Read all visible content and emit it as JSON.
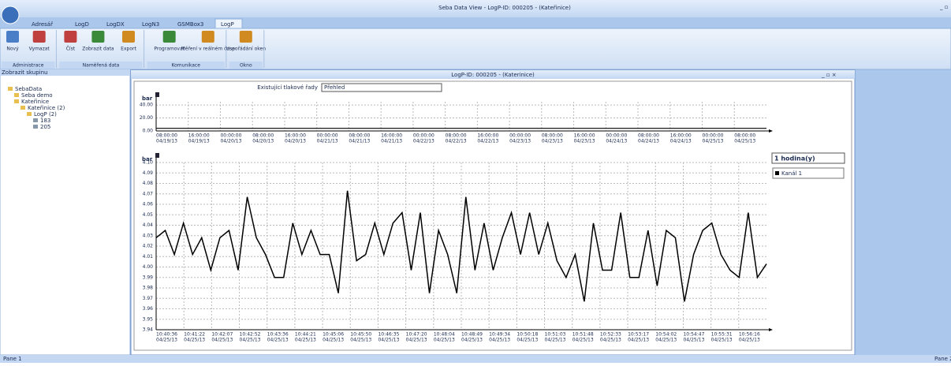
{
  "window_title": "Seba Data View - LogP-ID: 000205 -  (Kateřinice)",
  "tabs": [
    "Adresář",
    "LogD",
    "LogDX",
    "LogN3",
    "GSMBox3",
    "LogP"
  ],
  "ribbon_groups": [
    {
      "label": "Administrace",
      "buttons": [
        "Nový",
        "Vymazat"
      ]
    },
    {
      "label": "Naměřená data",
      "buttons": [
        "Číst",
        "Zobrazit data",
        "Export"
      ]
    },
    {
      "label": "Komunikace",
      "buttons": [
        "Programovat",
        "Měření v reálném čase"
      ]
    },
    {
      "label": "Okno",
      "buttons": [
        "Uspořádání oken"
      ]
    }
  ],
  "side_panel": {
    "title": "Zobrazit skupinu",
    "tree": [
      "SebaData",
      "Seba demo",
      "Kateřinice",
      "Kateřinice (2)",
      "LogP (2)",
      "183",
      "205"
    ]
  },
  "child_window": {
    "title": "LogP-ID: 000205 -  (Katerinice)",
    "series_label": "Existující tlakové řady",
    "series_select": "Přehled",
    "range_select": "1 hodina(y)"
  },
  "status": {
    "left": "Pane 1",
    "right": "Pane 2"
  },
  "chart_data": [
    {
      "type": "line",
      "y_label": "bar",
      "ylim": [
        0,
        45
      ],
      "yticks": [
        {
          "value": 0,
          "label": "0.00"
        },
        {
          "value": 20,
          "label": "20.00"
        },
        {
          "value": 40,
          "label": "40.00"
        }
      ],
      "x_labels": [
        [
          "08:00:00",
          "04/19/13"
        ],
        [
          "16:00:00",
          "04/19/13"
        ],
        [
          "00:00:00",
          "04/20/13"
        ],
        [
          "08:00:00",
          "04/20/13"
        ],
        [
          "16:00:00",
          "04/20/13"
        ],
        [
          "00:00:00",
          "04/21/13"
        ],
        [
          "08:00:00",
          "04/21/13"
        ],
        [
          "16:00:00",
          "04/21/13"
        ],
        [
          "00:00:00",
          "04/22/13"
        ],
        [
          "08:00:00",
          "04/22/13"
        ],
        [
          "16:00:00",
          "04/22/13"
        ],
        [
          "00:00:00",
          "04/23/13"
        ],
        [
          "08:00:00",
          "04/23/13"
        ],
        [
          "16:00:00",
          "04/23/13"
        ],
        [
          "00:00:00",
          "04/24/13"
        ],
        [
          "08:00:00",
          "04/24/13"
        ],
        [
          "16:00:00",
          "04/24/13"
        ],
        [
          "00:00:00",
          "04/25/13"
        ],
        [
          "08:00:00",
          "04/25/13"
        ]
      ],
      "color": "#000000",
      "values": [
        4,
        4,
        4,
        4,
        4,
        4,
        4,
        4,
        4,
        4,
        4,
        4,
        4,
        4,
        4,
        4,
        4,
        4,
        4
      ],
      "grid": true
    },
    {
      "type": "line",
      "y_label": "bar",
      "ylim": [
        3.94,
        4.1
      ],
      "yticks": [
        {
          "value": 3.94,
          "label": "3.94"
        },
        {
          "value": 3.95,
          "label": "3.95"
        },
        {
          "value": 3.96,
          "label": "3.96"
        },
        {
          "value": 3.97,
          "label": "3.97"
        },
        {
          "value": 3.98,
          "label": "3.98"
        },
        {
          "value": 3.99,
          "label": "3.99"
        },
        {
          "value": 4.0,
          "label": "4.00"
        },
        {
          "value": 4.01,
          "label": "4.01"
        },
        {
          "value": 4.02,
          "label": "4.02"
        },
        {
          "value": 4.03,
          "label": "4.03"
        },
        {
          "value": 4.04,
          "label": "4.04"
        },
        {
          "value": 4.05,
          "label": "4.05"
        },
        {
          "value": 4.06,
          "label": "4.06"
        },
        {
          "value": 4.07,
          "label": "4.07"
        },
        {
          "value": 4.08,
          "label": "4.08"
        },
        {
          "value": 4.09,
          "label": "4.09"
        },
        {
          "value": 4.1,
          "label": "4.10"
        }
      ],
      "x_labels": [
        [
          "10:40:36",
          "04/25/13"
        ],
        [
          "10:41:22",
          "04/25/13"
        ],
        [
          "10:42:07",
          "04/25/13"
        ],
        [
          "10:42:52",
          "04/25/13"
        ],
        [
          "10:43:36",
          "04/25/13"
        ],
        [
          "10:44:21",
          "04/25/13"
        ],
        [
          "10:45:06",
          "04/25/13"
        ],
        [
          "10:45:50",
          "04/25/13"
        ],
        [
          "10:46:35",
          "04/25/13"
        ],
        [
          "10:47:20",
          "04/25/13"
        ],
        [
          "10:48:04",
          "04/25/13"
        ],
        [
          "10:48:49",
          "04/25/13"
        ],
        [
          "10:49:34",
          "04/25/13"
        ],
        [
          "10:50:18",
          "04/25/13"
        ],
        [
          "10:51:03",
          "04/25/13"
        ],
        [
          "10:51:48",
          "04/25/13"
        ],
        [
          "10:52:33",
          "04/25/13"
        ],
        [
          "10:53:17",
          "04/25/13"
        ],
        [
          "10:54:02",
          "04/25/13"
        ],
        [
          "10:54:47",
          "04/25/13"
        ],
        [
          "10:55:31",
          "04/25/13"
        ],
        [
          "10:56:16",
          "04/25/13"
        ]
      ],
      "legend": "Kanál 1",
      "color": "#000000",
      "values": [
        4.028,
        4.035,
        4.012,
        4.042,
        4.012,
        4.028,
        3.997,
        4.028,
        4.035,
        3.997,
        4.067,
        4.028,
        4.012,
        3.99,
        3.99,
        4.042,
        4.012,
        4.035,
        4.012,
        4.012,
        3.975,
        4.073,
        4.006,
        4.012,
        4.042,
        4.012,
        4.042,
        4.052,
        3.997,
        4.052,
        3.975,
        4.035,
        4.012,
        3.975,
        4.067,
        3.997,
        4.042,
        3.997,
        4.028,
        4.052,
        4.012,
        4.052,
        4.012,
        4.042,
        4.006,
        3.99,
        4.012,
        3.967,
        4.042,
        3.997,
        3.997,
        4.052,
        3.99,
        3.99,
        4.035,
        3.982,
        4.035,
        4.028,
        3.967,
        4.012,
        4.035,
        4.042,
        4.012,
        3.997,
        3.99,
        4.052,
        3.99,
        4.003
      ],
      "grid": true
    }
  ]
}
